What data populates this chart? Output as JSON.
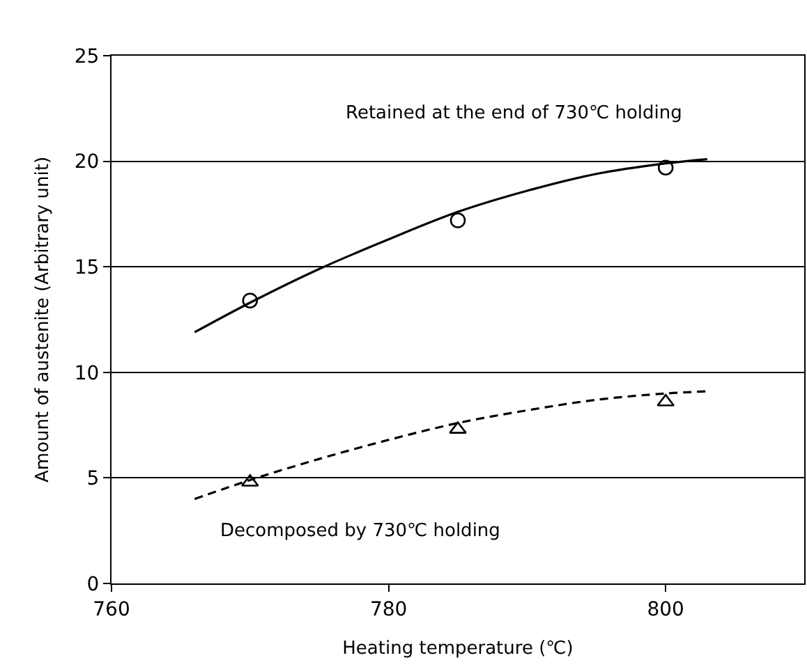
{
  "chart_data": {
    "type": "scatter",
    "xlabel": "Heating temperature (℃)",
    "ylabel": "Amount of austenite (Arbitrary unit)",
    "xlim": [
      760,
      810
    ],
    "xticks": [
      760,
      780,
      800
    ],
    "ylim": [
      0,
      25
    ],
    "yticks": [
      0,
      5,
      10,
      15,
      20,
      25
    ],
    "grid": "y",
    "series": [
      {
        "marker": "circle",
        "color": "#000000",
        "x": [
          770,
          785,
          800
        ],
        "values": [
          13.4,
          17.2,
          19.7
        ]
      },
      {
        "marker": "triangle",
        "color": "#000000",
        "x": [
          770,
          785,
          800
        ],
        "values": [
          4.8,
          7.3,
          8.6
        ]
      },
      {
        "type": "line",
        "line_style": "solid",
        "color": "#000000",
        "x": [
          766,
          770,
          775,
          780,
          785,
          790,
          795,
          800,
          803
        ],
        "values": [
          11.9,
          13.3,
          14.9,
          16.3,
          17.6,
          18.6,
          19.4,
          19.9,
          20.1
        ]
      },
      {
        "type": "line",
        "line_style": "dashed",
        "color": "#000000",
        "x": [
          766,
          770,
          775,
          780,
          785,
          790,
          795,
          800,
          803
        ],
        "values": [
          4.0,
          4.9,
          5.9,
          6.8,
          7.6,
          8.2,
          8.7,
          9.0,
          9.1
        ]
      }
    ],
    "annotations": [
      "Retained at the end of 730℃ holding",
      "Decomposed by 730℃ holding"
    ]
  }
}
